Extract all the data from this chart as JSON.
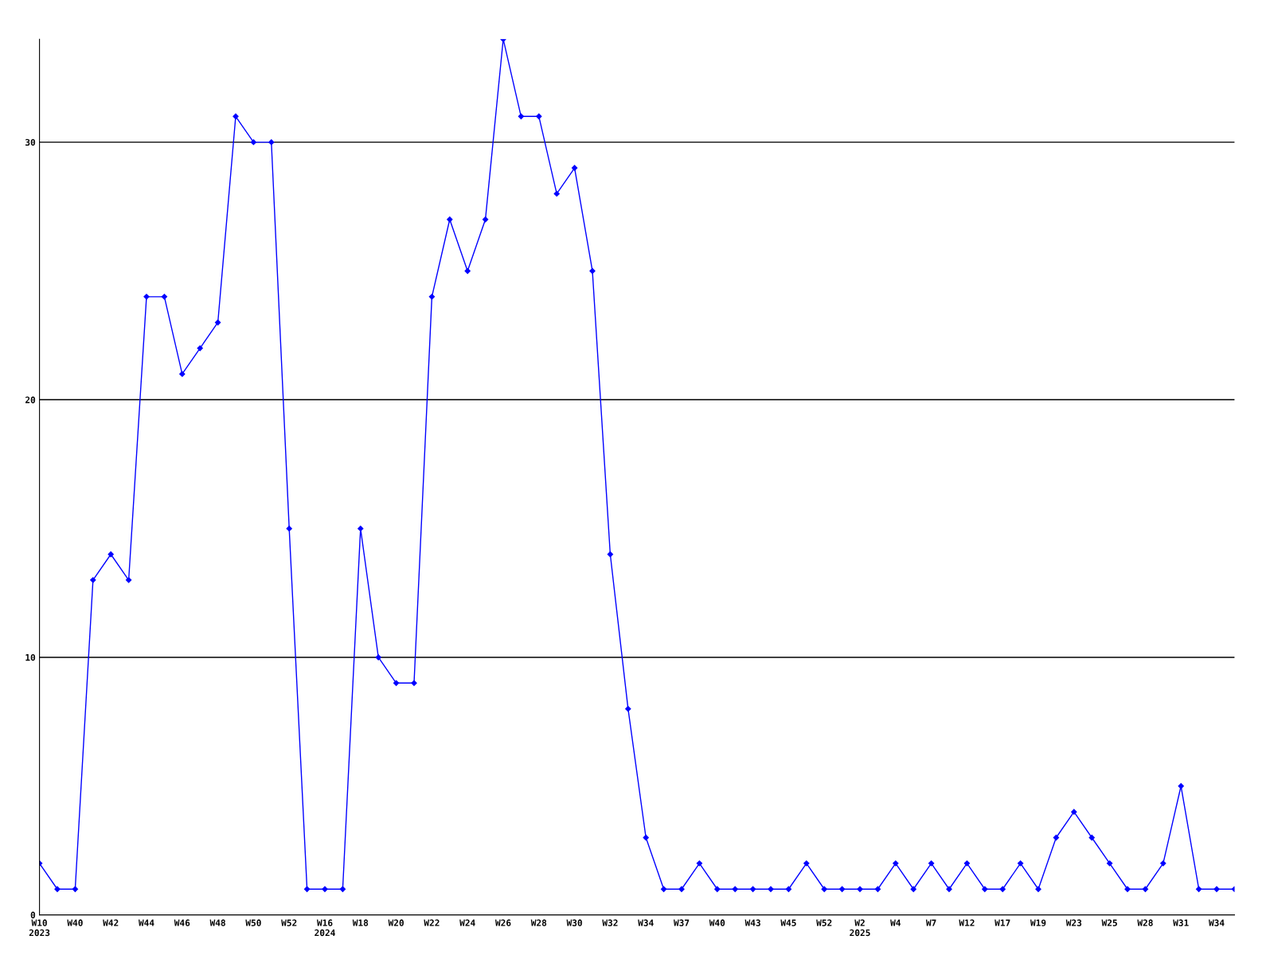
{
  "chart_data": {
    "type": "line",
    "categories": [
      "W10\n2023",
      null,
      "W40",
      null,
      "W42",
      null,
      "W44",
      null,
      "W46",
      null,
      "W48",
      null,
      "W50",
      null,
      "W52",
      null,
      "W16\n2024",
      null,
      "W18",
      null,
      "W20",
      null,
      "W22",
      null,
      "W24",
      null,
      "W26",
      null,
      "W28",
      null,
      "W30",
      null,
      "W32",
      null,
      "W34",
      null,
      "W37",
      null,
      "W40",
      null,
      "W43",
      null,
      "W45",
      null,
      "W52",
      null,
      "W2\n2025",
      null,
      "W4",
      null,
      "W7",
      null,
      "W12",
      null,
      "W17",
      null,
      "W19",
      null,
      "W23",
      null,
      "W25",
      null,
      "W28",
      null,
      "W31",
      null,
      "W34",
      null
    ],
    "series": [
      {
        "color": "#0000ff",
        "values": [
          2,
          1,
          1,
          13,
          14,
          13,
          24,
          24,
          21,
          22,
          23,
          31,
          30,
          30,
          15,
          1,
          1,
          1,
          15,
          10,
          9,
          9,
          24,
          27,
          25,
          27,
          34,
          31,
          31,
          28,
          29,
          25,
          14,
          8,
          3,
          1,
          1,
          2,
          1,
          1,
          1,
          1,
          1,
          2,
          1,
          1,
          1,
          1,
          2,
          1,
          2,
          1,
          2,
          1,
          1,
          2,
          1,
          3,
          4,
          3,
          2,
          1,
          1,
          2,
          5,
          1,
          1,
          1
        ]
      }
    ],
    "ylim": [
      0,
      34
    ],
    "yticks": [
      0,
      10,
      20,
      30
    ],
    "grid": "y",
    "marker": "diamond",
    "line_style": "solid"
  }
}
